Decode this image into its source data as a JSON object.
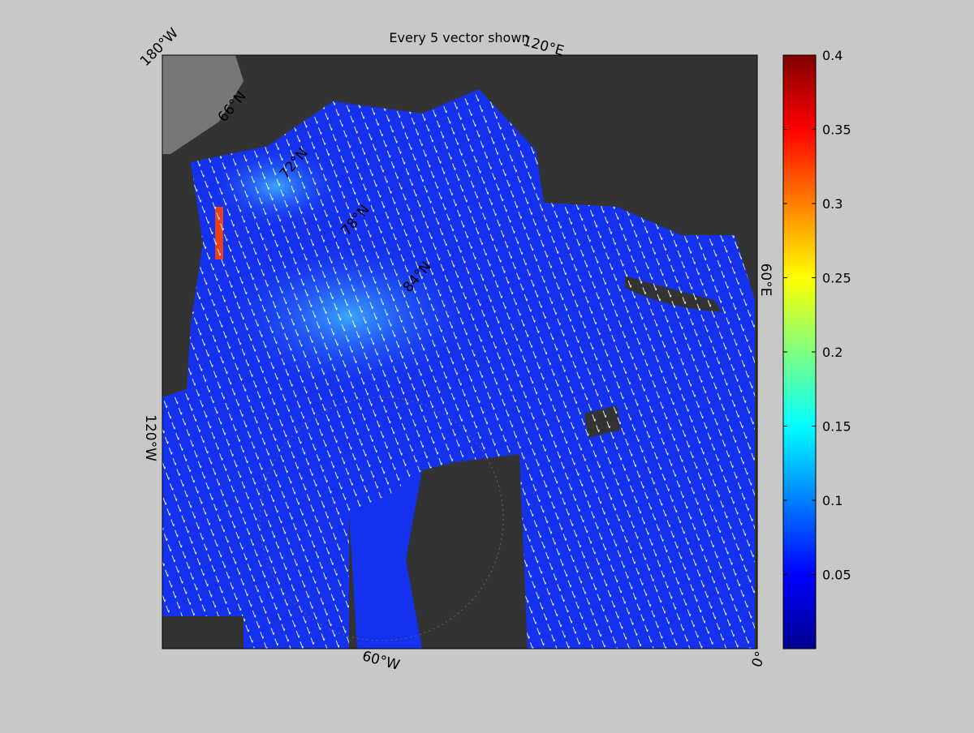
{
  "title": "Every 5 vector shown",
  "map": {
    "longitude_labels": [
      "180°W",
      "120°E",
      "60°E",
      "0°",
      "60°W",
      "120°W"
    ],
    "latitude_labels": [
      "66°N",
      "72°N",
      "78°N",
      "84°N"
    ]
  },
  "colorbar": {
    "colormap": "jet",
    "lim": [
      0,
      0.4
    ],
    "ticks": [
      0.05,
      0.1,
      0.15,
      0.2,
      0.25,
      0.3,
      0.35,
      0.4
    ]
  }
}
